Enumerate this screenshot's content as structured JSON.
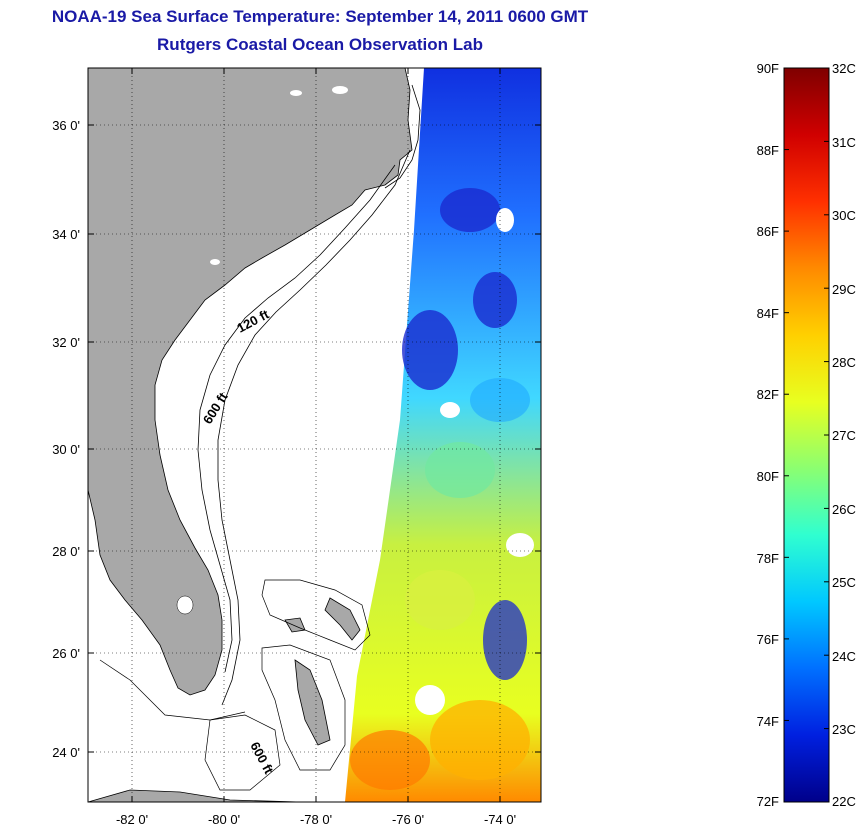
{
  "title": "NOAA-19 Sea Surface Temperature:  September 14, 2011 0600 GMT",
  "subtitle": "Rutgers Coastal Ocean Observation Lab",
  "map": {
    "lon_ticks": [
      "-82 0'",
      "-80 0'",
      "-78 0'",
      "-76 0'",
      "-74 0'"
    ],
    "lat_ticks": [
      "36 0'",
      "34 0'",
      "32 0'",
      "30 0'",
      "28 0'",
      "26 0'",
      "24 0'"
    ],
    "contour_labels": [
      "120 ft",
      "600 ft",
      "600 ft"
    ],
    "colors": {
      "land": "#a8a8a8",
      "ocean_nodata": "#ffffff",
      "grid": "#000000"
    }
  },
  "colorbar": {
    "fahrenheit_labels": [
      "90F",
      "88F",
      "86F",
      "84F",
      "82F",
      "80F",
      "78F",
      "76F",
      "74F",
      "72F"
    ],
    "celsius_labels": [
      "32C",
      "31C",
      "30C",
      "29C",
      "28C",
      "27C",
      "26C",
      "25C",
      "24C",
      "23C",
      "22C"
    ],
    "colormap": [
      "#7f0000",
      "#d00000",
      "#ff3000",
      "#ff8a00",
      "#ffd000",
      "#e8ff20",
      "#8cff70",
      "#30ffd0",
      "#00c8ff",
      "#0070ff",
      "#0020e0",
      "#00008a"
    ]
  }
}
